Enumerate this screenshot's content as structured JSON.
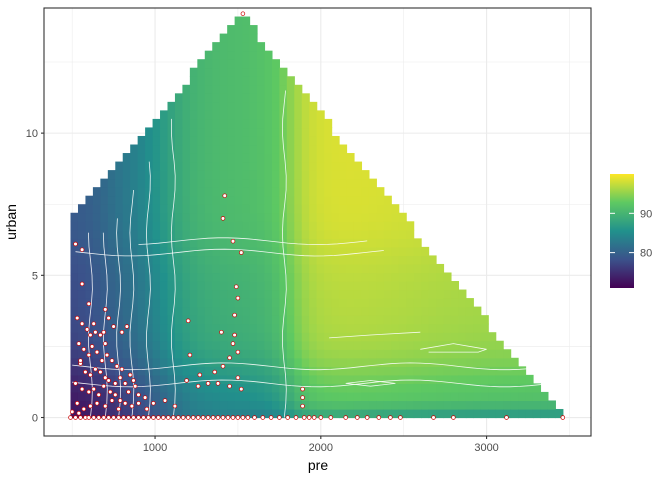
{
  "chart_data": {
    "type": "heatmap",
    "title": "",
    "xlabel": "pre",
    "ylabel": "urban",
    "xlim": [
      330,
      3630
    ],
    "ylim": [
      -0.65,
      14.4
    ],
    "x_ticks": [
      1000,
      2000,
      3000
    ],
    "x_tick_labels": [
      "1000",
      "2000",
      "3000"
    ],
    "y_ticks": [
      0,
      5,
      10
    ],
    "y_tick_labels": [
      "0",
      "5",
      "10"
    ],
    "grid": true,
    "legend": {
      "position": "right",
      "title": "",
      "range": [
        71,
        100
      ],
      "ticks": [
        80,
        90
      ],
      "tick_labels": [
        "80",
        "90"
      ],
      "colors": [
        "#440154",
        "#3b528b",
        "#21918c",
        "#5ec962",
        "#fde725"
      ]
    },
    "surface": {
      "x_min": 490,
      "x_max": 3460,
      "y_min": 0,
      "y_max": 14.2,
      "apex_x": 1520,
      "apex_y": 14.2,
      "left_top": 6.9,
      "right_bottom_x": 3460
    },
    "points": [
      [
        1530,
        14.2
      ],
      [
        1420,
        7.8
      ],
      [
        1410,
        7.0
      ],
      [
        1470,
        6.2
      ],
      [
        1520,
        5.8
      ],
      [
        1490,
        4.6
      ],
      [
        1500,
        4.2
      ],
      [
        1480,
        3.6
      ],
      [
        1400,
        3.0
      ],
      [
        1480,
        2.9
      ],
      [
        1470,
        2.6
      ],
      [
        1500,
        2.3
      ],
      [
        1450,
        2.1
      ],
      [
        1410,
        1.8
      ],
      [
        1360,
        1.6
      ],
      [
        1380,
        1.2
      ],
      [
        1450,
        1.1
      ],
      [
        1520,
        1.0
      ],
      [
        1500,
        1.4
      ],
      [
        1200,
        3.4
      ],
      [
        1210,
        2.2
      ],
      [
        1270,
        1.5
      ],
      [
        1190,
        1.3
      ],
      [
        1320,
        1.2
      ],
      [
        1260,
        1.1
      ],
      [
        1890,
        1.0
      ],
      [
        1890,
        0.7
      ],
      [
        1890,
        0.4
      ],
      [
        530,
        3.5
      ],
      [
        560,
        3.3
      ],
      [
        590,
        3.1
      ],
      [
        610,
        2.9
      ],
      [
        640,
        3.0
      ],
      [
        670,
        2.9
      ],
      [
        690,
        3.0
      ],
      [
        700,
        2.6
      ],
      [
        720,
        3.5
      ],
      [
        750,
        3.2
      ],
      [
        800,
        3.0
      ],
      [
        830,
        3.2
      ],
      [
        540,
        2.6
      ],
      [
        570,
        2.4
      ],
      [
        600,
        2.2
      ],
      [
        620,
        2.5
      ],
      [
        650,
        2.3
      ],
      [
        680,
        2.0
      ],
      [
        710,
        2.2
      ],
      [
        740,
        2.0
      ],
      [
        770,
        1.8
      ],
      [
        800,
        1.7
      ],
      [
        550,
        1.9
      ],
      [
        580,
        1.6
      ],
      [
        610,
        1.5
      ],
      [
        640,
        1.7
      ],
      [
        670,
        1.6
      ],
      [
        700,
        1.4
      ],
      [
        720,
        1.3
      ],
      [
        760,
        1.2
      ],
      [
        790,
        1.4
      ],
      [
        820,
        1.2
      ],
      [
        850,
        1.5
      ],
      [
        870,
        1.3
      ],
      [
        520,
        1.2
      ],
      [
        560,
        1.0
      ],
      [
        600,
        0.9
      ],
      [
        630,
        1.0
      ],
      [
        660,
        0.8
      ],
      [
        690,
        1.1
      ],
      [
        730,
        0.9
      ],
      [
        760,
        0.8
      ],
      [
        790,
        0.6
      ],
      [
        840,
        0.9
      ],
      [
        880,
        1.1
      ],
      [
        900,
        0.8
      ],
      [
        940,
        0.7
      ],
      [
        530,
        0.5
      ],
      [
        570,
        0.3
      ],
      [
        610,
        0.4
      ],
      [
        650,
        0.5
      ],
      [
        700,
        0.4
      ],
      [
        740,
        0.6
      ],
      [
        780,
        0.3
      ],
      [
        820,
        0.5
      ],
      [
        860,
        0.4
      ],
      [
        900,
        0.5
      ],
      [
        950,
        0.3
      ],
      [
        990,
        0.5
      ],
      [
        1060,
        0.6
      ],
      [
        1120,
        0.4
      ],
      [
        600,
        4.0
      ],
      [
        560,
        4.7
      ],
      [
        520,
        6.1
      ],
      [
        560,
        5.9
      ],
      [
        550,
        2.0
      ],
      [
        630,
        3.3
      ],
      [
        700,
        3.8
      ],
      [
        490,
        0
      ],
      [
        520,
        0
      ],
      [
        550,
        0
      ],
      [
        580,
        0
      ],
      [
        600,
        0
      ],
      [
        630,
        0
      ],
      [
        660,
        0
      ],
      [
        690,
        0
      ],
      [
        720,
        0
      ],
      [
        750,
        0
      ],
      [
        780,
        0
      ],
      [
        810,
        0
      ],
      [
        840,
        0
      ],
      [
        870,
        0
      ],
      [
        900,
        0
      ],
      [
        930,
        0
      ],
      [
        960,
        0
      ],
      [
        990,
        0
      ],
      [
        1020,
        0
      ],
      [
        1050,
        0
      ],
      [
        1080,
        0
      ],
      [
        1110,
        0
      ],
      [
        1140,
        0
      ],
      [
        1170,
        0
      ],
      [
        1200,
        0
      ],
      [
        1230,
        0
      ],
      [
        1260,
        0
      ],
      [
        1290,
        0
      ],
      [
        1320,
        0
      ],
      [
        1350,
        0
      ],
      [
        1380,
        0
      ],
      [
        1410,
        0
      ],
      [
        1440,
        0
      ],
      [
        1470,
        0
      ],
      [
        1500,
        0
      ],
      [
        1530,
        0
      ],
      [
        1560,
        0
      ],
      [
        1600,
        0
      ],
      [
        1650,
        0
      ],
      [
        1700,
        0
      ],
      [
        1750,
        0
      ],
      [
        1800,
        0
      ],
      [
        1850,
        0
      ],
      [
        1900,
        0
      ],
      [
        1930,
        0
      ],
      [
        1960,
        0
      ],
      [
        2000,
        0
      ],
      [
        2060,
        0
      ],
      [
        2150,
        0
      ],
      [
        2220,
        0
      ],
      [
        2280,
        0
      ],
      [
        2350,
        0
      ],
      [
        2420,
        0
      ],
      [
        2480,
        0
      ],
      [
        2680,
        0
      ],
      [
        2800,
        0
      ],
      [
        3120,
        0
      ],
      [
        3460,
        0
      ],
      [
        500,
        0.2
      ],
      [
        540,
        0.15
      ]
    ]
  }
}
